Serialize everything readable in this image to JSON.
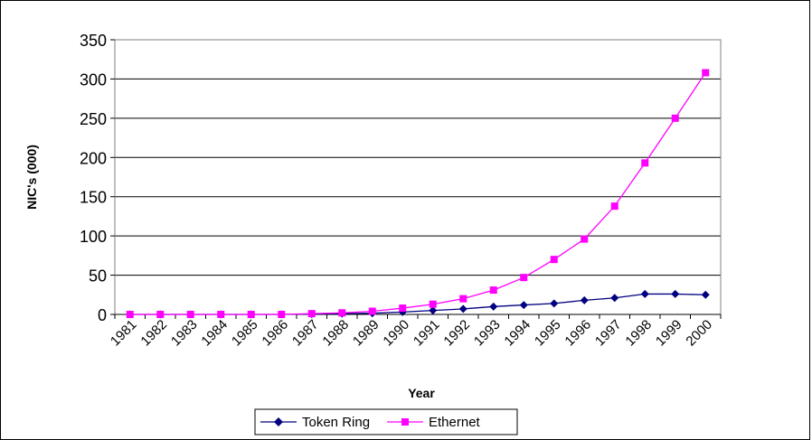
{
  "chart_data": {
    "type": "line",
    "title": "",
    "xlabel": "Year",
    "ylabel": "NIC's (000)",
    "categories": [
      "1981",
      "1982",
      "1983",
      "1984",
      "1985",
      "1986",
      "1987",
      "1988",
      "1989",
      "1990",
      "1991",
      "1992",
      "1993",
      "1994",
      "1995",
      "1996",
      "1997",
      "1998",
      "1999",
      "2000"
    ],
    "ylim": [
      0,
      350
    ],
    "yticks": [
      "0",
      "50",
      "100",
      "150",
      "200",
      "250",
      "300",
      "350"
    ],
    "grid": true,
    "legend_position": "bottom",
    "series": [
      {
        "name": "Token Ring",
        "color": "#000080",
        "marker": "diamond",
        "values": [
          0,
          0,
          0,
          0,
          0,
          0,
          0.5,
          1,
          1.5,
          3,
          5,
          7,
          10,
          12,
          14,
          18,
          21,
          26,
          26,
          25
        ]
      },
      {
        "name": "Ethernet",
        "color": "#FF00FF",
        "marker": "square",
        "values": [
          0,
          0,
          0,
          0,
          0,
          0,
          1,
          2,
          4,
          8,
          13,
          20,
          31,
          47,
          70,
          96,
          138,
          193,
          250,
          308
        ]
      }
    ]
  }
}
